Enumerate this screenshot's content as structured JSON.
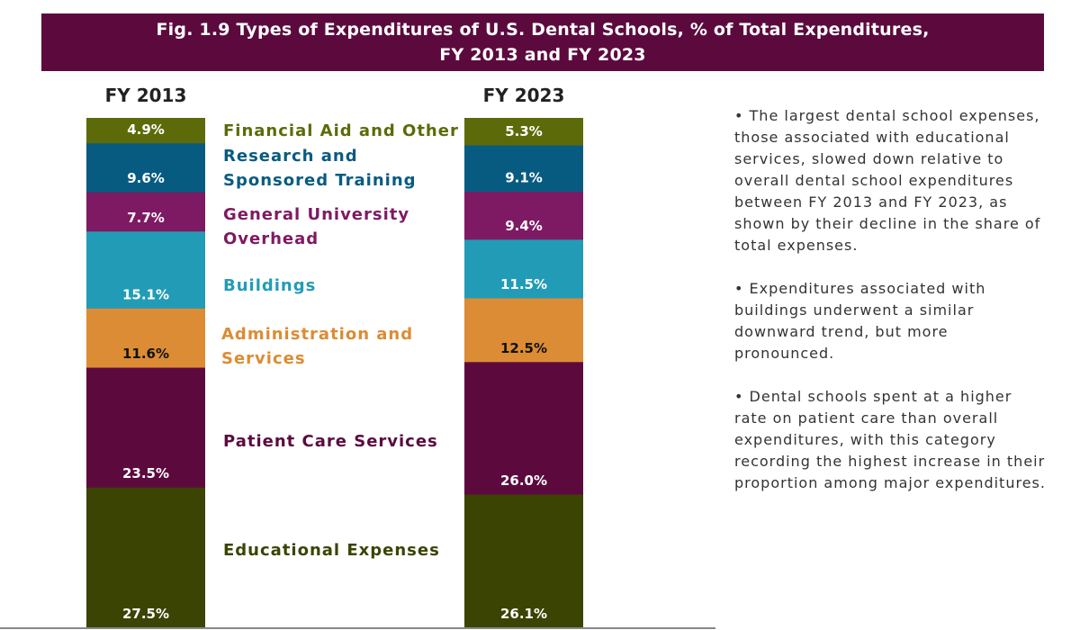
{
  "title_line1": "Fig. 1.9 Types of Expenditures of U.S. Dental Schools, % of Total Expenditures,",
  "title_line2": "FY 2013 and FY 2023",
  "chart_data": {
    "type": "bar",
    "stacked": true,
    "title": "Fig. 1.9 Types of Expenditures of U.S. Dental Schools, % of Total Expenditures, FY 2013 and FY 2023",
    "categories": [
      "FY 2013",
      "FY 2023"
    ],
    "series": [
      {
        "name": "Educational Expenses",
        "values": [
          27.5,
          26.1
        ],
        "labels": [
          "27.5%",
          "26.1%"
        ],
        "color": "#3b4403"
      },
      {
        "name": "Patient Care Services",
        "values": [
          23.5,
          26.0
        ],
        "labels": [
          "23.5%",
          "26.0%"
        ],
        "color": "#5c0a3e"
      },
      {
        "name": "Administration and Services",
        "values": [
          11.6,
          12.5
        ],
        "labels": [
          "11.6%",
          "12.5%"
        ],
        "color": "#dc8c34"
      },
      {
        "name": "Buildings",
        "values": [
          15.1,
          11.5
        ],
        "labels": [
          "15.1%",
          "11.5%"
        ],
        "color": "#229cb6"
      },
      {
        "name": "General University Overhead",
        "values": [
          7.7,
          9.4
        ],
        "labels": [
          "7.7%",
          "9.4%"
        ],
        "color": "#7e1a63"
      },
      {
        "name": "Research and Sponsored Training",
        "values": [
          9.6,
          9.1
        ],
        "labels": [
          "9.6%",
          "9.1%"
        ],
        "color": "#085b80"
      },
      {
        "name": "Financial Aid and Other",
        "values": [
          4.9,
          5.3
        ],
        "labels": [
          "4.9%",
          "5.3%"
        ],
        "color": "#5d6a09"
      }
    ]
  },
  "labels": {
    "financial_aid": "Financial Aid and Other",
    "research_1": "Research and",
    "research_2": "Sponsored Training",
    "overhead_1": "General University",
    "overhead_2": "Overhead",
    "buildings": "Buildings",
    "admin_1": "Administration and",
    "admin_2": "Services",
    "patient_care": "Patient Care Services",
    "educational": "Educational Expenses"
  },
  "bullets": [
    "• The largest dental school expenses, those associated with educational services, slowed down relative to overall dental school expenditures between FY 2013 and FY 2023, as shown by their decline in the share of total expenses.",
    "• Expenditures associated with buildings underwent a similar downward trend, but more pronounced.",
    "• Dental schools spent at a higher rate on patient care than overall expenditures, with this category recording the highest increase in their proportion among major expenditures."
  ]
}
